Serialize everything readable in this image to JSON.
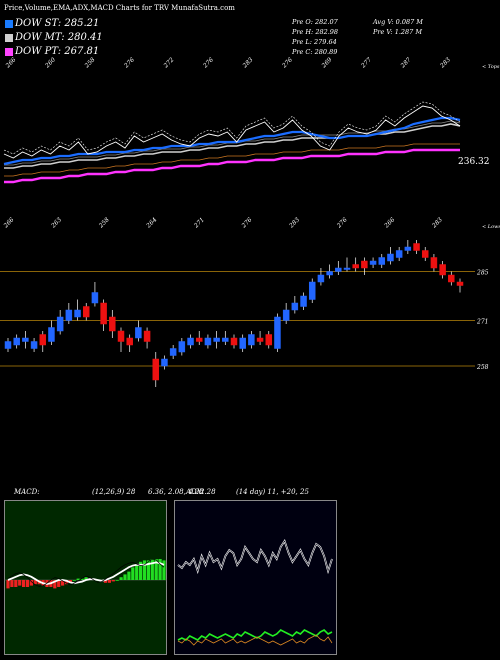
{
  "header": {
    "title": "Price,Volume,EMA,ADX,MACD Charts for TRV MunafaSutra.com"
  },
  "legend": [
    {
      "label": "DOW ST: 285.21",
      "color": "#1a7cff"
    },
    {
      "label": "DOW MT: 280.41",
      "color": "#cfcfcf"
    },
    {
      "label": "DOW PT: 267.81",
      "color": "#ff44ff"
    }
  ],
  "stats": {
    "pre_o": "Pre  O: 282.07",
    "pre_h": "Pre  H: 282.98",
    "pre_l": "Pre  L: 279.64",
    "pre_c": "Pre  C: 280.89",
    "avg_v": "Avg V: 0.087 M",
    "pre_v": "Pre   V: 1.287 M"
  },
  "colors": {
    "up": "#2266ff",
    "down": "#ee1111",
    "ema_short": "#1a6cff",
    "ema_mid": "#d0d0d0",
    "ema_long": "#ff33ff",
    "ref_line": "#b8860b"
  },
  "chart_data": [
    {
      "type": "line",
      "name": "ema-panel",
      "top_ticks": [
        "266",
        "260",
        "258",
        "276",
        "272",
        "276",
        "283",
        "276",
        "269",
        "277",
        "287",
        "283",
        "< Tops"
      ],
      "value_label": "236.32",
      "series": [
        {
          "name": "price",
          "values": [
            266,
            264,
            267,
            265,
            268,
            266,
            270,
            268,
            272,
            266,
            267,
            270,
            272,
            269,
            275,
            272,
            274,
            276,
            273,
            271,
            270,
            274,
            276,
            275,
            277,
            272,
            278,
            280,
            282,
            277,
            279,
            283,
            278,
            275,
            270,
            268,
            275,
            279,
            277,
            276,
            278,
            283,
            280,
            284,
            287,
            290,
            289,
            285,
            283,
            280
          ]
        },
        {
          "name": "DOW ST",
          "values": [
            261,
            262,
            263,
            263,
            264,
            264,
            265,
            265,
            266,
            266,
            266,
            267,
            267,
            267,
            268,
            268,
            269,
            269,
            270,
            270,
            270,
            271,
            271,
            272,
            272,
            272,
            273,
            274,
            275,
            275,
            276,
            277,
            277,
            276,
            275,
            274,
            274,
            275,
            275,
            275,
            276,
            277,
            278,
            279,
            281,
            282,
            283,
            284,
            284,
            283
          ]
        },
        {
          "name": "DOW MT",
          "values": [
            259,
            259,
            260,
            260,
            261,
            261,
            262,
            262,
            263,
            263,
            263,
            264,
            264,
            265,
            265,
            266,
            266,
            267,
            267,
            267,
            268,
            268,
            269,
            269,
            270,
            270,
            271,
            271,
            272,
            272,
            273,
            273,
            274,
            274,
            274,
            274,
            274,
            275,
            275,
            275,
            276,
            276,
            277,
            277,
            278,
            279,
            280,
            280,
            281,
            280
          ]
        },
        {
          "name": "DOW PT",
          "values": [
            252,
            252,
            253,
            253,
            254,
            254,
            254,
            255,
            255,
            256,
            256,
            256,
            257,
            257,
            258,
            258,
            258,
            259,
            259,
            260,
            260,
            260,
            261,
            261,
            262,
            262,
            262,
            263,
            263,
            263,
            264,
            264,
            264,
            265,
            265,
            265,
            265,
            266,
            266,
            266,
            266,
            267,
            267,
            267,
            268,
            268,
            268,
            268,
            268,
            268
          ]
        }
      ]
    },
    {
      "type": "bar",
      "name": "candlestick-panel",
      "top_ticks": [
        "266",
        "263",
        "258",
        "264",
        "271",
        "276",
        "283",
        "276",
        "266",
        "283",
        "< Lows"
      ],
      "y_labels": [
        "285",
        "271",
        "258"
      ],
      "ylim": [
        250,
        300
      ],
      "candles": [
        {
          "o": 263,
          "c": 265,
          "h": 266,
          "l": 262
        },
        {
          "o": 264,
          "c": 266,
          "h": 267,
          "l": 263
        },
        {
          "o": 265,
          "c": 266,
          "h": 268,
          "l": 263
        },
        {
          "o": 263,
          "c": 265,
          "h": 266,
          "l": 262
        },
        {
          "o": 267,
          "c": 264,
          "h": 268,
          "l": 262
        },
        {
          "o": 265,
          "c": 269,
          "h": 271,
          "l": 264
        },
        {
          "o": 268,
          "c": 272,
          "h": 274,
          "l": 267
        },
        {
          "o": 271,
          "c": 274,
          "h": 276,
          "l": 270
        },
        {
          "o": 272,
          "c": 274,
          "h": 277,
          "l": 271
        },
        {
          "o": 275,
          "c": 272,
          "h": 276,
          "l": 271
        },
        {
          "o": 276,
          "c": 279,
          "h": 282,
          "l": 275
        },
        {
          "o": 276,
          "c": 270,
          "h": 277,
          "l": 268
        },
        {
          "o": 272,
          "c": 268,
          "h": 274,
          "l": 266
        },
        {
          "o": 268,
          "c": 265,
          "h": 269,
          "l": 262
        },
        {
          "o": 266,
          "c": 264,
          "h": 267,
          "l": 262
        },
        {
          "o": 266,
          "c": 269,
          "h": 271,
          "l": 265
        },
        {
          "o": 268,
          "c": 265,
          "h": 269,
          "l": 263
        },
        {
          "o": 260,
          "c": 254,
          "h": 262,
          "l": 252
        },
        {
          "o": 258,
          "c": 260,
          "h": 261,
          "l": 257
        },
        {
          "o": 261,
          "c": 263,
          "h": 264,
          "l": 260
        },
        {
          "o": 262,
          "c": 265,
          "h": 266,
          "l": 261
        },
        {
          "o": 264,
          "c": 266,
          "h": 267,
          "l": 263
        },
        {
          "o": 266,
          "c": 265,
          "h": 268,
          "l": 264
        },
        {
          "o": 264,
          "c": 266,
          "h": 267,
          "l": 263
        },
        {
          "o": 265,
          "c": 266,
          "h": 268,
          "l": 263
        },
        {
          "o": 265,
          "c": 266,
          "h": 268,
          "l": 264
        },
        {
          "o": 266,
          "c": 264,
          "h": 267,
          "l": 263
        },
        {
          "o": 263,
          "c": 266,
          "h": 267,
          "l": 262
        },
        {
          "o": 264,
          "c": 267,
          "h": 268,
          "l": 263
        },
        {
          "o": 266,
          "c": 265,
          "h": 268,
          "l": 264
        },
        {
          "o": 267,
          "c": 264,
          "h": 268,
          "l": 263
        },
        {
          "o": 263,
          "c": 272,
          "h": 273,
          "l": 262
        },
        {
          "o": 271,
          "c": 274,
          "h": 276,
          "l": 270
        },
        {
          "o": 274,
          "c": 276,
          "h": 278,
          "l": 273
        },
        {
          "o": 275,
          "c": 278,
          "h": 279,
          "l": 274
        },
        {
          "o": 277,
          "c": 282,
          "h": 283,
          "l": 276
        },
        {
          "o": 282,
          "c": 284,
          "h": 286,
          "l": 281
        },
        {
          "o": 284,
          "c": 285,
          "h": 287,
          "l": 283
        },
        {
          "o": 285,
          "c": 286,
          "h": 288,
          "l": 284
        },
        {
          "o": 286,
          "c": 286,
          "h": 289,
          "l": 285
        },
        {
          "o": 287,
          "c": 286,
          "h": 289,
          "l": 285
        },
        {
          "o": 288,
          "c": 286,
          "h": 289,
          "l": 284
        },
        {
          "o": 287,
          "c": 288,
          "h": 289,
          "l": 286
        },
        {
          "o": 287,
          "c": 289,
          "h": 290,
          "l": 286
        },
        {
          "o": 288,
          "c": 290,
          "h": 292,
          "l": 287
        },
        {
          "o": 289,
          "c": 291,
          "h": 292,
          "l": 288
        },
        {
          "o": 291,
          "c": 292,
          "h": 294,
          "l": 290
        },
        {
          "o": 293,
          "c": 291,
          "h": 294,
          "l": 290
        },
        {
          "o": 291,
          "c": 289,
          "h": 292,
          "l": 288
        },
        {
          "o": 289,
          "c": 286,
          "h": 290,
          "l": 285
        },
        {
          "o": 287,
          "c": 284,
          "h": 288,
          "l": 283
        },
        {
          "o": 284,
          "c": 282,
          "h": 285,
          "l": 281
        },
        {
          "o": 282,
          "c": 281,
          "h": 283,
          "l": 279
        }
      ]
    },
    {
      "type": "bar",
      "name": "macd-panel",
      "label": "MACD:",
      "params": "(12,26,9) 28",
      "values_text": "6.36,  2.08,  4.28",
      "histogram": [
        -0.6,
        -0.5,
        -0.5,
        -0.4,
        -0.5,
        -0.5,
        -0.4,
        -0.3,
        -0.3,
        -0.4,
        -0.5,
        -0.5,
        -0.6,
        -0.5,
        -0.4,
        -0.3,
        -0.2,
        0.0,
        0.1,
        0.1,
        0.2,
        0.1,
        0.1,
        0.0,
        -0.1,
        -0.2,
        -0.2,
        -0.1,
        0.0,
        0.2,
        0.4,
        0.6,
        0.9,
        1.1,
        1.3,
        1.4,
        1.4,
        1.5,
        1.5,
        1.5,
        1.4
      ],
      "macd_line": [
        0.2,
        0.5,
        0.8,
        0.9,
        0.7,
        0.3,
        -0.2,
        -0.6,
        -0.8,
        -0.7,
        -0.4,
        0.0,
        0.3,
        0.2,
        -0.1,
        -0.4,
        -0.6,
        -0.4,
        -0.1,
        0.2,
        0.5,
        0.3,
        0.0,
        -0.3,
        -0.2,
        0.1,
        0.5,
        0.8,
        1.2,
        1.6,
        1.9,
        2.1,
        2.2,
        2.0,
        1.8,
        1.9,
        2.3,
        2.6,
        2.5,
        2.0,
        1.6
      ],
      "signal_line": [
        0.0,
        0.2,
        0.4,
        0.6,
        0.7,
        0.6,
        0.4,
        0.1,
        -0.2,
        -0.4,
        -0.5,
        -0.4,
        -0.2,
        0.0,
        0.0,
        -0.1,
        -0.3,
        -0.4,
        -0.3,
        -0.2,
        0.0,
        0.1,
        0.1,
        0.0,
        -0.1,
        0.0,
        0.2,
        0.4,
        0.7,
        1.0,
        1.3,
        1.6,
        1.8,
        1.9,
        1.9,
        1.9,
        2.0,
        2.1,
        2.2,
        2.1,
        1.9
      ]
    },
    {
      "type": "line",
      "name": "adx-panel",
      "label": "ADX",
      "values_text": "2.28",
      "params": "(14 day) 11,  +20,  25",
      "adx": [
        20,
        19,
        21,
        20,
        22,
        18,
        23,
        20,
        24,
        21,
        22,
        19,
        23,
        25,
        24,
        20,
        22,
        26,
        24,
        22,
        21,
        25,
        23,
        20,
        24,
        22,
        26,
        28,
        24,
        21,
        23,
        25,
        22,
        20,
        24,
        27,
        26,
        23,
        18,
        22
      ],
      "plus_di": [
        20,
        21,
        20,
        22,
        21,
        20,
        22,
        21,
        23,
        22,
        21,
        22,
        23,
        22,
        21,
        23,
        22,
        24,
        23,
        22,
        21,
        22,
        24,
        23,
        22,
        23,
        25,
        24,
        23,
        22,
        24,
        23,
        25,
        24,
        23,
        22,
        24,
        25,
        23,
        24
      ],
      "minus_di": [
        22,
        21,
        23,
        22,
        20,
        22,
        21,
        23,
        22,
        21,
        22,
        23,
        21,
        22,
        23,
        21,
        22,
        21,
        22,
        23,
        24,
        23,
        22,
        21,
        22,
        21,
        20,
        21,
        22,
        23,
        21,
        22,
        21,
        23,
        24,
        25,
        23,
        22,
        24,
        21
      ]
    }
  ]
}
